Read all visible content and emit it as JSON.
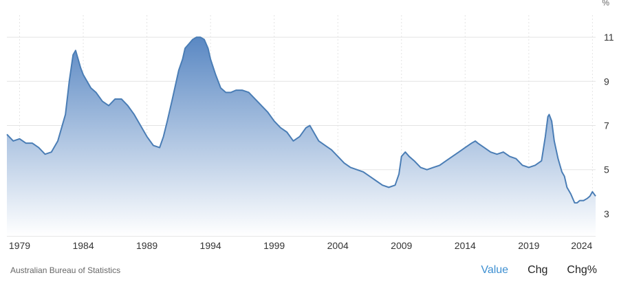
{
  "source_label": "Australian Bureau of Statistics",
  "tabs": [
    {
      "label": "Value",
      "active": true
    },
    {
      "label": "Chg",
      "active": false
    },
    {
      "label": "Chg%",
      "active": false
    }
  ],
  "colors": {
    "line": "#4a7db5",
    "fill_top": "#5a88c3",
    "fill_bottom": "#ffffff",
    "grid": "#e3e3e3",
    "active_tab": "#3d8fd1"
  },
  "chart_data": {
    "type": "area",
    "title": "",
    "xlabel": "",
    "ylabel": "",
    "y_unit": "%",
    "xlim": [
      1978.0,
      2024.25
    ],
    "ylim": [
      2.0,
      12.0
    ],
    "x_ticks": [
      "1979",
      "1984",
      "1989",
      "1994",
      "1999",
      "2004",
      "2009",
      "2014",
      "2019",
      "2024"
    ],
    "y_ticks": [
      "3",
      "5",
      "7",
      "9",
      "11"
    ],
    "grid": true,
    "series": [
      {
        "x": [
          1978.0,
          1978.5,
          1979.0,
          1979.5,
          1980.0,
          1980.5,
          1981.0,
          1981.5,
          1982.0,
          1982.3,
          1982.6,
          1982.9,
          1983.2,
          1983.4,
          1983.6,
          1983.8,
          1984.0,
          1984.3,
          1984.6,
          1985.0,
          1985.5,
          1986.0,
          1986.5,
          1987.0,
          1987.5,
          1988.0,
          1988.5,
          1989.0,
          1989.5,
          1990.0,
          1990.3,
          1990.6,
          1991.0,
          1991.5,
          1991.8,
          1992.0,
          1992.3,
          1992.6,
          1992.9,
          1993.2,
          1993.5,
          1993.8,
          1994.0,
          1994.4,
          1994.8,
          1995.2,
          1995.6,
          1996.0,
          1996.5,
          1997.0,
          1997.5,
          1998.0,
          1998.5,
          1999.0,
          1999.5,
          2000.0,
          2000.5,
          2001.0,
          2001.5,
          2001.8,
          2002.0,
          2002.5,
          2003.0,
          2003.5,
          2004.0,
          2004.5,
          2005.0,
          2005.5,
          2006.0,
          2006.5,
          2007.0,
          2007.5,
          2008.0,
          2008.5,
          2008.8,
          2009.0,
          2009.3,
          2009.6,
          2010.0,
          2010.5,
          2011.0,
          2011.5,
          2012.0,
          2012.5,
          2013.0,
          2013.5,
          2014.0,
          2014.5,
          2014.8,
          2015.0,
          2015.5,
          2016.0,
          2016.5,
          2017.0,
          2017.5,
          2018.0,
          2018.5,
          2019.0,
          2019.5,
          2020.0,
          2020.3,
          2020.5,
          2020.6,
          2020.8,
          2021.0,
          2021.3,
          2021.6,
          2021.8,
          2022.0,
          2022.3,
          2022.6,
          2022.8,
          2023.0,
          2023.3,
          2023.6,
          2023.8,
          2024.0,
          2024.25
        ],
        "values": [
          6.6,
          6.3,
          6.4,
          6.2,
          6.2,
          6.0,
          5.7,
          5.8,
          6.3,
          6.9,
          7.5,
          9.0,
          10.2,
          10.4,
          10.0,
          9.6,
          9.3,
          9.0,
          8.7,
          8.5,
          8.1,
          7.9,
          8.2,
          8.2,
          7.9,
          7.5,
          7.0,
          6.5,
          6.1,
          6.0,
          6.5,
          7.2,
          8.2,
          9.5,
          10.0,
          10.5,
          10.7,
          10.9,
          11.0,
          11.0,
          10.9,
          10.5,
          10.0,
          9.3,
          8.7,
          8.5,
          8.5,
          8.6,
          8.6,
          8.5,
          8.2,
          7.9,
          7.6,
          7.2,
          6.9,
          6.7,
          6.3,
          6.5,
          6.9,
          7.0,
          6.8,
          6.3,
          6.1,
          5.9,
          5.6,
          5.3,
          5.1,
          5.0,
          4.9,
          4.7,
          4.5,
          4.3,
          4.2,
          4.3,
          4.8,
          5.6,
          5.8,
          5.6,
          5.4,
          5.1,
          5.0,
          5.1,
          5.2,
          5.4,
          5.6,
          5.8,
          6.0,
          6.2,
          6.3,
          6.2,
          6.0,
          5.8,
          5.7,
          5.8,
          5.6,
          5.5,
          5.2,
          5.1,
          5.2,
          5.4,
          6.5,
          7.4,
          7.5,
          7.2,
          6.3,
          5.5,
          4.9,
          4.7,
          4.2,
          3.9,
          3.5,
          3.5,
          3.6,
          3.6,
          3.7,
          3.8,
          4.0,
          3.8
        ]
      }
    ]
  }
}
